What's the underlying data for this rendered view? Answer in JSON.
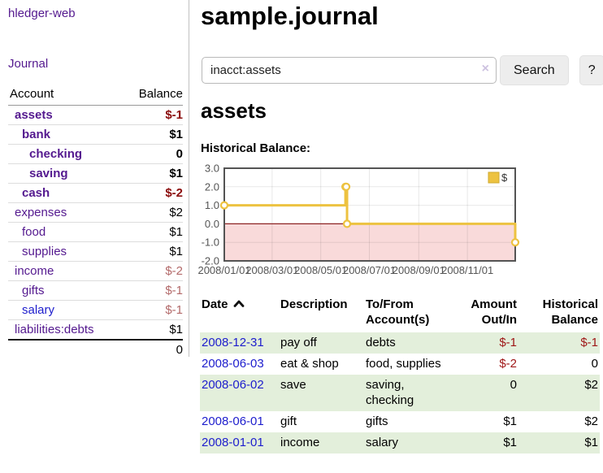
{
  "app": {
    "brand": "hledger-web"
  },
  "sidebar": {
    "nav": {
      "journal": "Journal"
    },
    "accounts": {
      "col_account": "Account",
      "col_balance": "Balance",
      "rows": [
        {
          "name": "assets",
          "balance": "$-1",
          "indent": 0,
          "bold": true,
          "link": "purple",
          "bal_style": "neg-bold"
        },
        {
          "name": "bank",
          "balance": "$1",
          "indent": 1,
          "bold": true,
          "link": "purple",
          "bal_style": "bold"
        },
        {
          "name": "checking",
          "balance": "0",
          "indent": 2,
          "bold": true,
          "link": "purple",
          "bal_style": "bold"
        },
        {
          "name": "saving",
          "balance": "$1",
          "indent": 2,
          "bold": true,
          "link": "purple",
          "bal_style": "bold"
        },
        {
          "name": "cash",
          "balance": "$-2",
          "indent": 1,
          "bold": true,
          "link": "purple",
          "bal_style": "neg-bold"
        },
        {
          "name": "expenses",
          "balance": "$2",
          "indent": 0,
          "bold": false,
          "link": "purple",
          "bal_style": "plain"
        },
        {
          "name": "food",
          "balance": "$1",
          "indent": 1,
          "bold": false,
          "link": "purple",
          "bal_style": "plain"
        },
        {
          "name": "supplies",
          "balance": "$1",
          "indent": 1,
          "bold": false,
          "link": "purple",
          "bal_style": "plain"
        },
        {
          "name": "income",
          "balance": "$-2",
          "indent": 0,
          "bold": false,
          "link": "purple",
          "bal_style": "neg"
        },
        {
          "name": "gifts",
          "balance": "$-1",
          "indent": 1,
          "bold": false,
          "link": "purple",
          "bal_style": "neg"
        },
        {
          "name": "salary",
          "balance": "$-1",
          "indent": 1,
          "bold": false,
          "link": "blue",
          "bal_style": "neg"
        },
        {
          "name": "liabilities:debts",
          "balance": "$1",
          "indent": 0,
          "bold": false,
          "link": "purple",
          "bal_style": "plain"
        }
      ],
      "total": "0"
    }
  },
  "main": {
    "title": "sample.journal",
    "search": {
      "value": "inacct:assets",
      "clear_icon": "×",
      "search_button": "Search",
      "help_button": "?"
    },
    "account_heading": "assets",
    "section_label": "Historical Balance:"
  },
  "chart_data": {
    "type": "line",
    "step": true,
    "title": "Historical Balance",
    "series": [
      {
        "name": "$",
        "color": "#edc240",
        "points": [
          [
            "2008-01-01",
            1
          ],
          [
            "2008-06-01",
            2
          ],
          [
            "2008-06-02",
            2
          ],
          [
            "2008-06-03",
            0
          ],
          [
            "2008-12-31",
            -1
          ]
        ]
      }
    ],
    "x_range": [
      "2008-01-01",
      "2008-12-31"
    ],
    "y_range": [
      -2,
      3
    ],
    "y_ticks": [
      3,
      2,
      1,
      0,
      -1,
      -2
    ],
    "y_tick_labels": [
      "3.0",
      "2.0",
      "1.0",
      "0.0",
      "-1.0",
      "-2.0"
    ],
    "x_ticks": [
      "2008-01-01",
      "2008-03-01",
      "2008-05-01",
      "2008-07-01",
      "2008-09-01",
      "2008-11-01"
    ],
    "x_tick_labels": [
      "2008/01/01",
      "2008/03/01",
      "2008/05/01",
      "2008/07/01",
      "2008/09/01",
      "2008/11/01"
    ],
    "legend": "$",
    "legend_position": "top-right",
    "grid": true,
    "negative_region": {
      "from": 0,
      "to": -2,
      "fill": "#f9dada"
    },
    "zero_line_color": "#8e2323",
    "border_color": "#545454",
    "tick_label_color": "#555555"
  },
  "transactions": {
    "headers": {
      "date": "Date",
      "description": "Description",
      "accounts": "To/From Account(s)",
      "amount": "Amount Out/In",
      "balance": "Historical Balance"
    },
    "rows": [
      {
        "date": "2008-12-31",
        "description": "pay off",
        "accounts": "debts",
        "amount": "$-1",
        "balance": "$-1"
      },
      {
        "date": "2008-06-03",
        "description": "eat & shop",
        "accounts": "food, supplies",
        "amount": "$-2",
        "balance": "0"
      },
      {
        "date": "2008-06-02",
        "description": "save",
        "accounts": "saving, checking",
        "amount": "0",
        "balance": "$2"
      },
      {
        "date": "2008-06-01",
        "description": "gift",
        "accounts": "gifts",
        "amount": "$1",
        "balance": "$2"
      },
      {
        "date": "2008-01-01",
        "description": "income",
        "accounts": "salary",
        "amount": "$1",
        "balance": "$1"
      }
    ]
  },
  "colors": {
    "purple_link": "#54198f",
    "blue_link": "#1d1dcd",
    "negative_strong": "#8b0c0c",
    "negative_soft": "#b36a6a",
    "negative_cell": "#9e1616",
    "row_stripe": "#e3efdb",
    "accent_gold": "#edc240"
  }
}
